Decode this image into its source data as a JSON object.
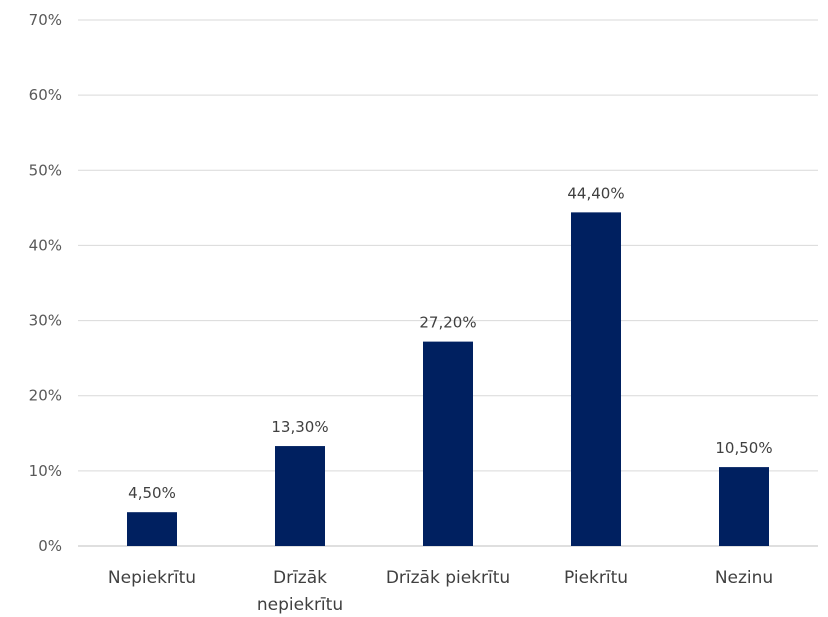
{
  "chart_data": {
    "type": "bar",
    "categories": [
      [
        "Nepiekrītu"
      ],
      [
        "Drīzāk",
        "nepiekrītu"
      ],
      [
        "Drīzāk piekrītu"
      ],
      [
        "Piekrītu"
      ],
      [
        "Nezinu"
      ]
    ],
    "values": [
      4.5,
      13.3,
      27.2,
      44.4,
      10.5
    ],
    "data_labels": [
      "4,50%",
      "13,30%",
      "27,20%",
      "44,40%",
      "10,50%"
    ],
    "y_ticks": [
      "0%",
      "10%",
      "20%",
      "30%",
      "40%",
      "50%",
      "60%",
      "70%"
    ],
    "ylim": [
      0,
      70
    ],
    "y_unit": "%",
    "grid": true,
    "legend": "none",
    "title": "",
    "xlabel": "",
    "ylabel": "",
    "colors": {
      "bar": "#002060",
      "grid": "#d9d9d9",
      "axis_text": "#595959",
      "label_text": "#404040"
    }
  }
}
